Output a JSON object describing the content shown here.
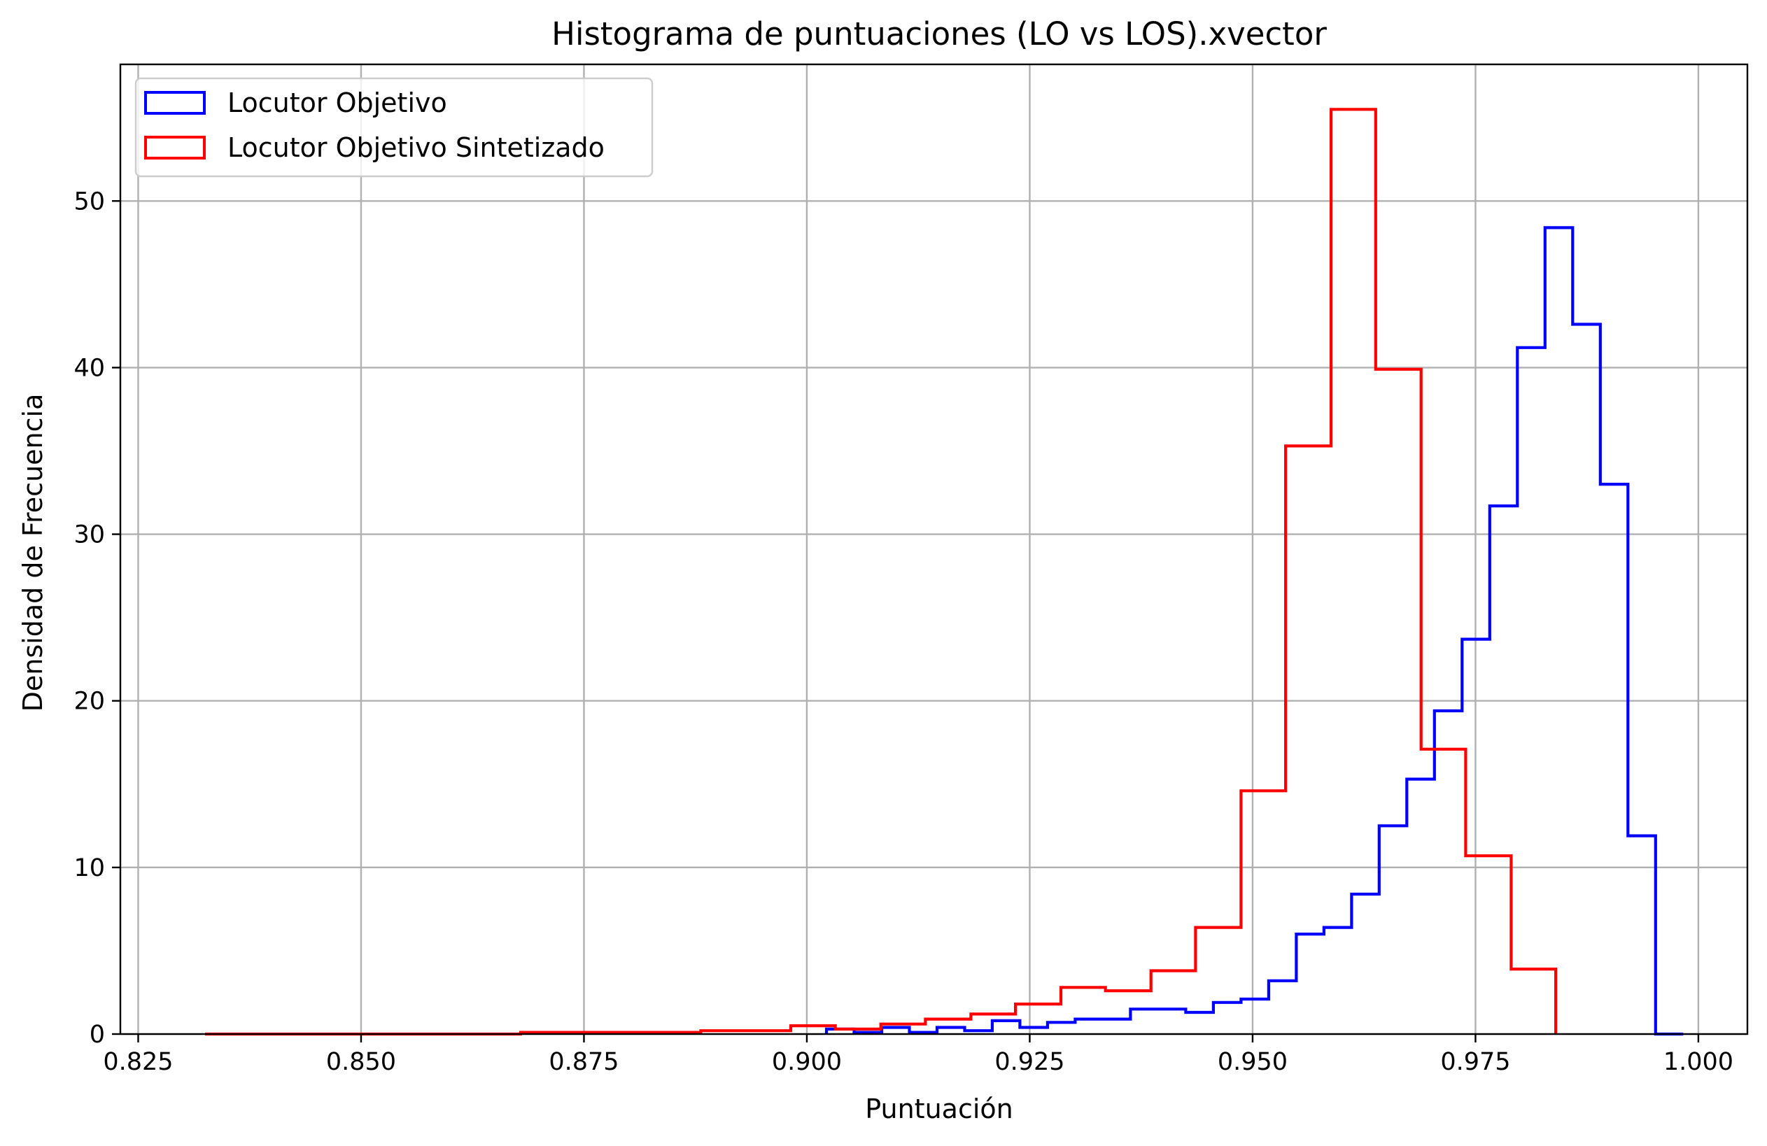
{
  "chart_data": {
    "type": "histogram",
    "title": "Histograma de puntuaciones (LO vs LOS).xvector",
    "xlabel": "Puntuación",
    "ylabel": "Densidad de Frecuencia",
    "xlim": [
      0.823,
      1.0055
    ],
    "ylim": [
      0,
      58.2
    ],
    "xticks": [
      0.825,
      0.85,
      0.875,
      0.9,
      0.925,
      0.95,
      0.975,
      1.0
    ],
    "xtick_labels": [
      "0.825",
      "0.850",
      "0.875",
      "0.900",
      "0.925",
      "0.950",
      "0.975",
      "1.000"
    ],
    "yticks": [
      0,
      10,
      20,
      30,
      40,
      50
    ],
    "ytick_labels": [
      "0",
      "10",
      "20",
      "30",
      "40",
      "50"
    ],
    "grid": true,
    "legend_position": "top-left",
    "series": [
      {
        "name": "Locutor Objetivo",
        "color": "#0000ff",
        "bin_edges": [
          0.9022,
          0.9053,
          0.9084,
          0.9115,
          0.9146,
          0.9177,
          0.9208,
          0.9239,
          0.927,
          0.9301,
          0.9332,
          0.9363,
          0.9394,
          0.9425,
          0.9456,
          0.9487,
          0.9518,
          0.9549,
          0.958,
          0.9611,
          0.9642,
          0.9673,
          0.9704,
          0.9735,
          0.9766,
          0.9797,
          0.9828,
          0.9859,
          0.989,
          0.9921,
          0.9952,
          0.9983
        ],
        "values": [
          0.3,
          0.1,
          0.4,
          0.1,
          0.4,
          0.2,
          0.8,
          0.4,
          0.7,
          0.9,
          0.9,
          1.5,
          1.5,
          1.3,
          1.9,
          2.1,
          3.2,
          6.0,
          6.4,
          8.4,
          12.5,
          15.3,
          19.4,
          23.7,
          31.7,
          41.2,
          48.4,
          42.6,
          33.0,
          11.9,
          0.0
        ]
      },
      {
        "name": "Locutor Objetivo Sintetizado",
        "color": "#ff0000",
        "bin_edges": [
          0.8325,
          0.8376,
          0.8426,
          0.8477,
          0.8527,
          0.8578,
          0.8628,
          0.8679,
          0.8729,
          0.878,
          0.883,
          0.8881,
          0.8931,
          0.8982,
          0.9032,
          0.9083,
          0.9133,
          0.9184,
          0.9234,
          0.9285,
          0.9335,
          0.9386,
          0.9436,
          0.9487,
          0.9537,
          0.9588,
          0.9638,
          0.9689,
          0.9739,
          0.979,
          0.984
        ],
        "values": [
          0.0,
          0.0,
          0.0,
          0.0,
          0.0,
          0.0,
          0.0,
          0.1,
          0.1,
          0.1,
          0.1,
          0.2,
          0.2,
          0.5,
          0.3,
          0.6,
          0.9,
          1.2,
          1.8,
          2.8,
          2.6,
          3.8,
          6.4,
          14.6,
          35.3,
          55.5,
          39.9,
          17.1,
          10.7,
          3.9
        ]
      }
    ]
  }
}
